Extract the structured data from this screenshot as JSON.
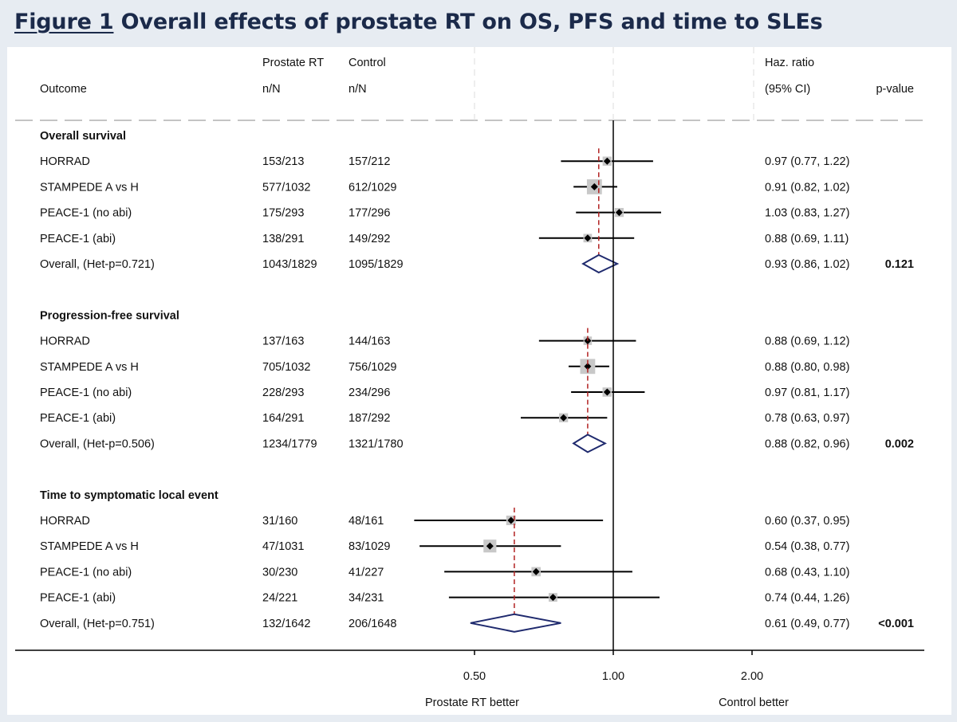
{
  "figure": {
    "label": "Figure 1",
    "title": "Overall effects of prostate RT on  OS, PFS and time to SLEs"
  },
  "headers": {
    "outcome": "Outcome",
    "rt_line1": "Prostate RT",
    "rt_line2": "n/N",
    "ctrl_line1": "Control",
    "ctrl_line2": "n/N",
    "hr_line1": "Haz. ratio",
    "hr_line2": "(95% CI)",
    "p": "p-value"
  },
  "colors": {
    "diamond": "#1f2a6e",
    "reference_dash": "#b22222",
    "box": "#c8c8c8",
    "ci_line": "#000000"
  },
  "chart_data": {
    "type": "forest",
    "xscale": "log",
    "xlim": [
      0.33,
      2.8
    ],
    "xticks": [
      0.5,
      1.0,
      2.0
    ],
    "xtick_labels": [
      "0.50",
      "1.00",
      "2.00"
    ],
    "null_value": 1.0,
    "left_label": "Prostate RT better",
    "right_label": "Control better",
    "groups": [
      {
        "title": "Overall survival",
        "studies": [
          {
            "name": "HORRAD",
            "rt": "153/213",
            "ctrl": "157/212",
            "hr": 0.97,
            "lo": 0.77,
            "hi": 1.22,
            "text": "0.97 (0.77, 1.22)",
            "weight": 0.19
          },
          {
            "name": "STAMPEDE A vs H",
            "rt": "577/1032",
            "ctrl": "612/1029",
            "hr": 0.91,
            "lo": 0.82,
            "hi": 1.02,
            "text": "0.91 (0.82, 1.02)",
            "weight": 0.6
          },
          {
            "name": "PEACE-1 (no abi)",
            "rt": "175/293",
            "ctrl": "177/296",
            "hr": 1.03,
            "lo": 0.83,
            "hi": 1.27,
            "text": "1.03 (0.83, 1.27)",
            "weight": 0.18
          },
          {
            "name": "PEACE-1 (abi)",
            "rt": "138/291",
            "ctrl": "149/292",
            "hr": 0.88,
            "lo": 0.69,
            "hi": 1.11,
            "text": "0.88 (0.69, 1.11)",
            "weight": 0.15
          }
        ],
        "overall": {
          "name": "Overall, (Het-p=0.721)",
          "rt": "1043/1829",
          "ctrl": "1095/1829",
          "hr": 0.93,
          "lo": 0.86,
          "hi": 1.02,
          "text": "0.93 (0.86, 1.02)",
          "p": "0.121"
        }
      },
      {
        "title": "Progression-free survival",
        "studies": [
          {
            "name": "HORRAD",
            "rt": "137/163",
            "ctrl": "144/163",
            "hr": 0.88,
            "lo": 0.69,
            "hi": 1.12,
            "text": "0.88 (0.69, 1.12)",
            "weight": 0.14
          },
          {
            "name": "STAMPEDE A vs H",
            "rt": "705/1032",
            "ctrl": "756/1029",
            "hr": 0.88,
            "lo": 0.8,
            "hi": 0.98,
            "text": "0.88 (0.80, 0.98)",
            "weight": 0.6
          },
          {
            "name": "PEACE-1 (no abi)",
            "rt": "228/293",
            "ctrl": "234/296",
            "hr": 0.97,
            "lo": 0.81,
            "hi": 1.17,
            "text": "0.97 (0.81, 1.17)",
            "weight": 0.2
          },
          {
            "name": "PEACE-1 (abi)",
            "rt": "164/291",
            "ctrl": "187/292",
            "hr": 0.78,
            "lo": 0.63,
            "hi": 0.97,
            "text": "0.78 (0.63, 0.97)",
            "weight": 0.18
          }
        ],
        "overall": {
          "name": "Overall, (Het-p=0.506)",
          "rt": "1234/1779",
          "ctrl": "1321/1780",
          "hr": 0.88,
          "lo": 0.82,
          "hi": 0.96,
          "text": "0.88 (0.82, 0.96)",
          "p": "0.002"
        }
      },
      {
        "title": "Time to symptomatic local event",
        "studies": [
          {
            "name": "HORRAD",
            "rt": "31/160",
            "ctrl": "48/161",
            "hr": 0.6,
            "lo": 0.37,
            "hi": 0.95,
            "text": "0.60 (0.37, 0.95)",
            "weight": 0.22
          },
          {
            "name": "STAMPEDE A vs H",
            "rt": "47/1031",
            "ctrl": "83/1029",
            "hr": 0.54,
            "lo": 0.38,
            "hi": 0.77,
            "text": "0.54 (0.38, 0.77)",
            "weight": 0.45
          },
          {
            "name": "PEACE-1 (no abi)",
            "rt": "30/230",
            "ctrl": "41/227",
            "hr": 0.68,
            "lo": 0.43,
            "hi": 1.1,
            "text": "0.68 (0.43, 1.10)",
            "weight": 0.2
          },
          {
            "name": "PEACE-1 (abi)",
            "rt": "24/221",
            "ctrl": "34/231",
            "hr": 0.74,
            "lo": 0.44,
            "hi": 1.26,
            "text": "0.74 (0.44, 1.26)",
            "weight": 0.16
          }
        ],
        "overall": {
          "name": "Overall, (Het-p=0.751)",
          "rt": "132/1642",
          "ctrl": "206/1648",
          "hr": 0.61,
          "lo": 0.49,
          "hi": 0.77,
          "text": "0.61 (0.49, 0.77)",
          "p": "<0.001"
        }
      }
    ]
  }
}
